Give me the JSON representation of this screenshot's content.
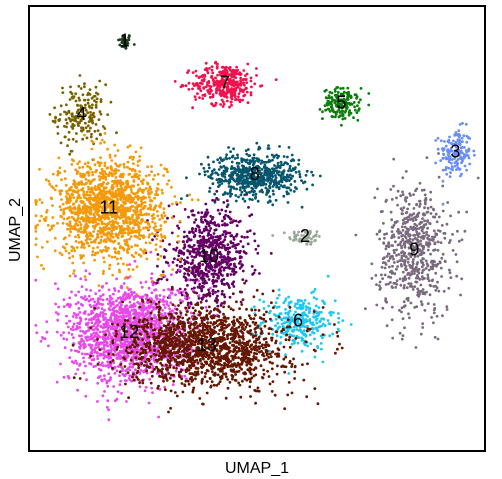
{
  "chart_data": {
    "type": "scatter",
    "xlabel": "UMAP_1",
    "ylabel": "UMAP_2",
    "xlim": [
      -10,
      10
    ],
    "ylim": [
      -10,
      10
    ],
    "ticks_shown": false,
    "grid": false,
    "legend": "none",
    "point_radius": 1.4,
    "clusters": [
      {
        "label": "1",
        "color": "#1f3b1f",
        "center": [
          -5.8,
          8.4
        ],
        "spread": [
          0.15,
          0.18
        ],
        "n": 40
      },
      {
        "label": "2",
        "color": "#9aa89a",
        "center": [
          2.1,
          -0.4
        ],
        "spread": [
          0.35,
          0.18
        ],
        "n": 60
      },
      {
        "label": "3",
        "color": "#6a8ff5",
        "center": [
          8.7,
          3.4
        ],
        "spread": [
          0.35,
          0.55
        ],
        "n": 160
      },
      {
        "label": "4",
        "color": "#7a6200",
        "center": [
          -7.7,
          5.1
        ],
        "spread": [
          0.55,
          0.7
        ],
        "n": 180
      },
      {
        "label": "5",
        "color": "#0a7d0a",
        "center": [
          3.7,
          5.6
        ],
        "spread": [
          0.4,
          0.35
        ],
        "n": 160
      },
      {
        "label": "6",
        "color": "#1ec8ef",
        "center": [
          1.8,
          -4.2
        ],
        "spread": [
          0.8,
          0.6
        ],
        "n": 300
      },
      {
        "label": "7",
        "color": "#f0134e",
        "center": [
          -1.4,
          6.5
        ],
        "spread": [
          0.7,
          0.45
        ],
        "n": 350
      },
      {
        "label": "8",
        "color": "#07566e",
        "center": [
          -0.1,
          2.4
        ],
        "spread": [
          1.0,
          0.5
        ],
        "n": 600
      },
      {
        "label": "9",
        "color": "#7a6a7e",
        "center": [
          6.9,
          -1.0
        ],
        "spread": [
          0.8,
          1.5
        ],
        "n": 600
      },
      {
        "label": "10",
        "color": "#640064",
        "center": [
          -2.1,
          -1.3
        ],
        "spread": [
          0.9,
          1.0
        ],
        "n": 700
      },
      {
        "label": "11",
        "color": "#f39a0b",
        "center": [
          -6.5,
          0.9
        ],
        "spread": [
          1.2,
          1.1
        ],
        "n": 1400
      },
      {
        "label": "12",
        "color": "#e84ae9",
        "center": [
          -5.6,
          -4.7
        ],
        "spread": [
          1.3,
          1.1
        ],
        "n": 1600
      },
      {
        "label": "13",
        "color": "#651700",
        "center": [
          -2.2,
          -5.3
        ],
        "spread": [
          1.8,
          0.9
        ],
        "n": 1500
      }
    ]
  }
}
